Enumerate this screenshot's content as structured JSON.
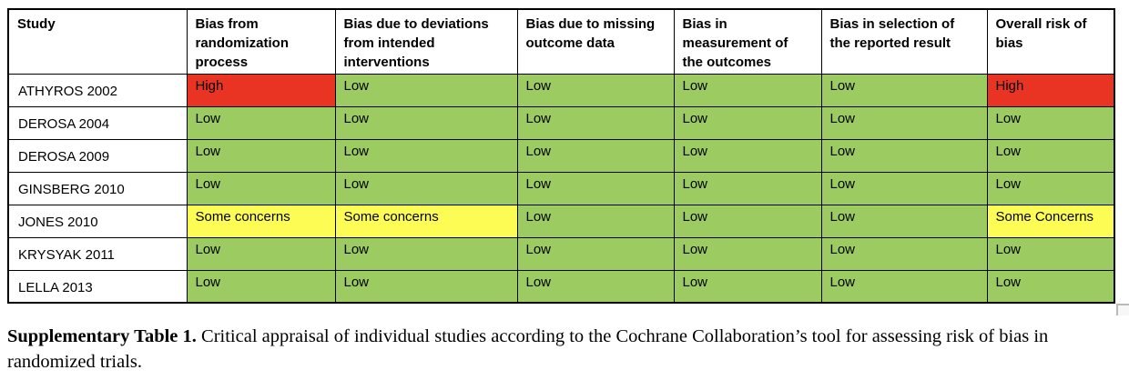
{
  "colors": {
    "high_bg": "#E93323",
    "low_bg": "#9CCB62",
    "concerns_bg": "#FCFC54",
    "handle": "#BABABA"
  },
  "table": {
    "columns": [
      "Study",
      "Bias from randomization process",
      "Bias due to deviations from intended interventions",
      "Bias due to missing outcome data",
      "Bias in measurement of the outcomes",
      "Bias in selection of the reported result",
      "Overall risk of bias"
    ],
    "rows": [
      {
        "study": "ATHYROS 2002",
        "cells": [
          {
            "text": "High",
            "level": "high"
          },
          {
            "text": "Low",
            "level": "low"
          },
          {
            "text": "Low",
            "level": "low"
          },
          {
            "text": "Low",
            "level": "low"
          },
          {
            "text": "Low",
            "level": "low"
          },
          {
            "text": "High",
            "level": "high"
          }
        ]
      },
      {
        "study": "DEROSA 2004",
        "cells": [
          {
            "text": "Low",
            "level": "low"
          },
          {
            "text": "Low",
            "level": "low"
          },
          {
            "text": "Low",
            "level": "low"
          },
          {
            "text": "Low",
            "level": "low"
          },
          {
            "text": "Low",
            "level": "low"
          },
          {
            "text": "Low",
            "level": "low"
          }
        ]
      },
      {
        "study": "DEROSA 2009",
        "cells": [
          {
            "text": "Low",
            "level": "low"
          },
          {
            "text": "Low",
            "level": "low"
          },
          {
            "text": "Low",
            "level": "low"
          },
          {
            "text": "Low",
            "level": "low"
          },
          {
            "text": "Low",
            "level": "low"
          },
          {
            "text": "Low",
            "level": "low"
          }
        ]
      },
      {
        "study": "GINSBERG 2010",
        "cells": [
          {
            "text": "Low",
            "level": "low"
          },
          {
            "text": "Low",
            "level": "low"
          },
          {
            "text": "Low",
            "level": "low"
          },
          {
            "text": "Low",
            "level": "low"
          },
          {
            "text": "Low",
            "level": "low"
          },
          {
            "text": "Low",
            "level": "low"
          }
        ]
      },
      {
        "study": "JONES 2010",
        "cells": [
          {
            "text": "Some concerns",
            "level": "concerns"
          },
          {
            "text": "Some concerns",
            "level": "concerns"
          },
          {
            "text": "Low",
            "level": "low"
          },
          {
            "text": "Low",
            "level": "low"
          },
          {
            "text": "Low",
            "level": "low"
          },
          {
            "text": "Some Concerns",
            "level": "concerns"
          }
        ]
      },
      {
        "study": "KRYSYAK 2011",
        "cells": [
          {
            "text": "Low",
            "level": "low"
          },
          {
            "text": "Low",
            "level": "low"
          },
          {
            "text": "Low",
            "level": "low"
          },
          {
            "text": "Low",
            "level": "low"
          },
          {
            "text": "Low",
            "level": "low"
          },
          {
            "text": "Low",
            "level": "low"
          }
        ]
      },
      {
        "study": "LELLA 2013",
        "cells": [
          {
            "text": "Low",
            "level": "low"
          },
          {
            "text": "Low",
            "level": "low"
          },
          {
            "text": "Low",
            "level": "low"
          },
          {
            "text": "Low",
            "level": "low"
          },
          {
            "text": "Low",
            "level": "low"
          },
          {
            "text": "Low",
            "level": "low"
          }
        ]
      }
    ]
  },
  "caption": {
    "label": "Supplementary Table 1.",
    "text": "Critical appraisal of individual studies according to the Cochrane Collaboration’s tool for assessing risk of bias in randomized trials."
  }
}
